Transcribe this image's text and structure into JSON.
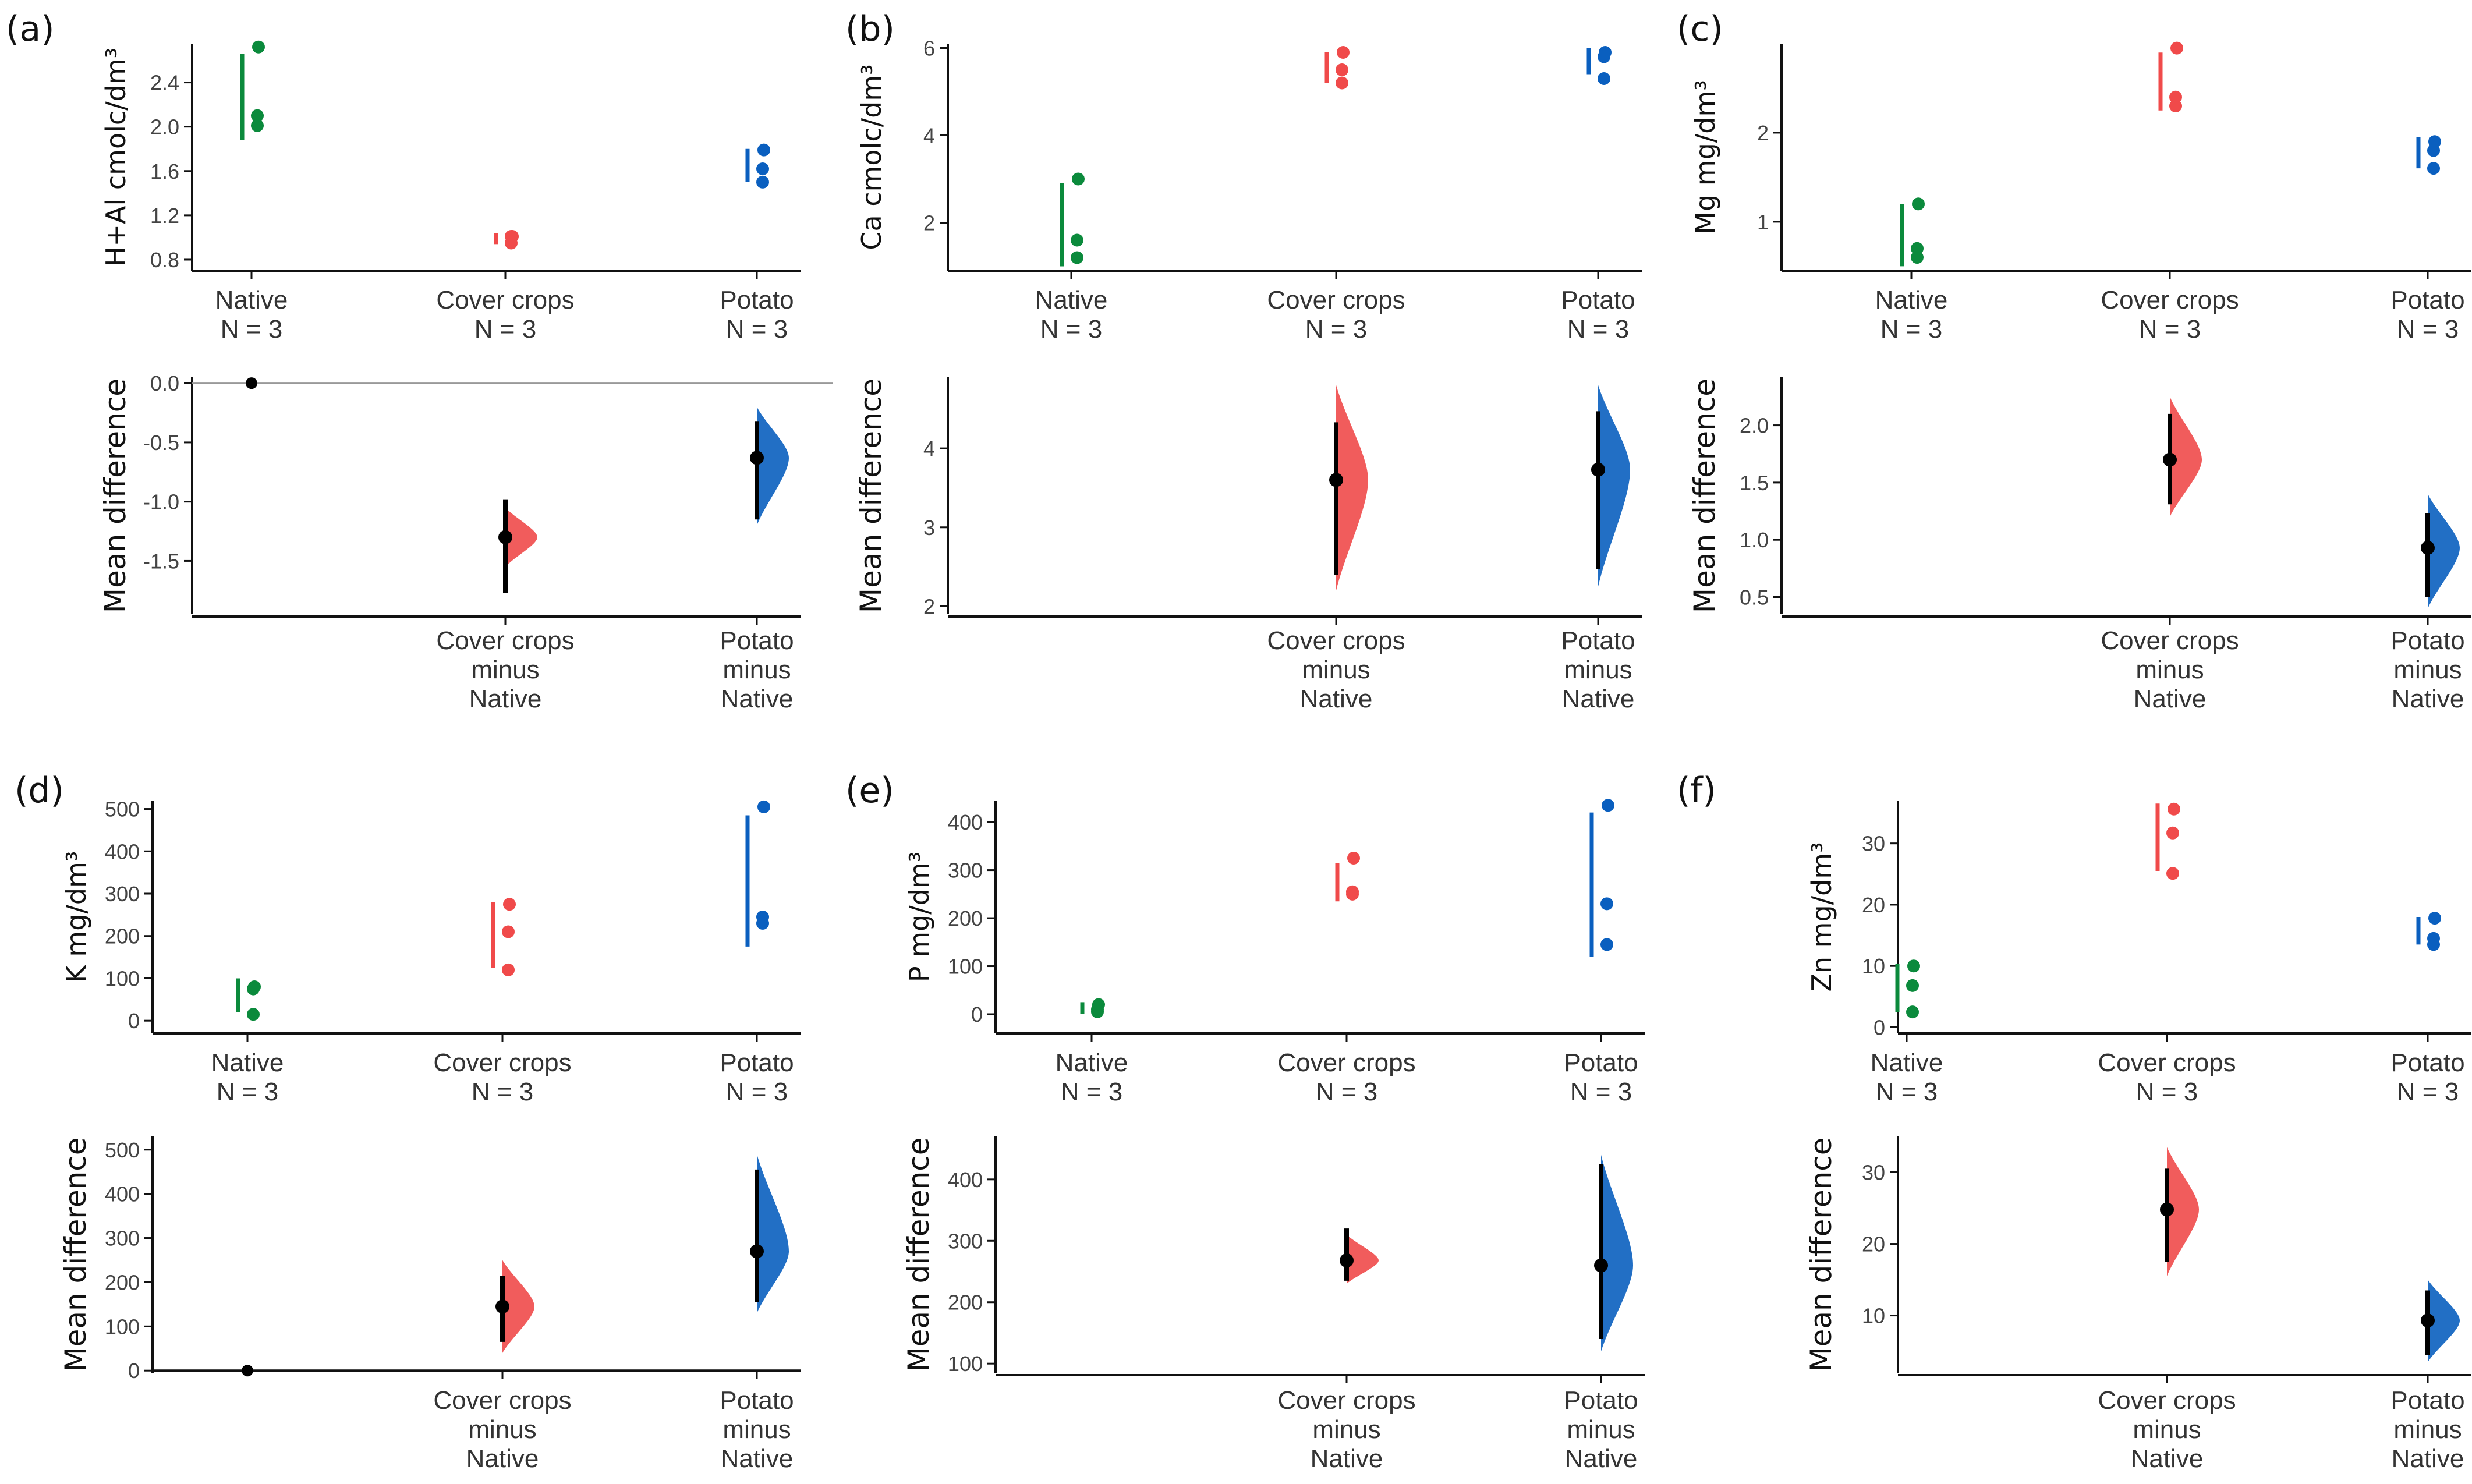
{
  "colors": {
    "native": "#0b8a3c",
    "cover": "#f04a4a",
    "potato": "#0a5fbf",
    "axis": "#111111",
    "mean": "#000000"
  },
  "bottom_ylabel": "Mean difference",
  "chart_data": [
    {
      "panel": "(a)",
      "type": "estimation",
      "top": {
        "ylabel": "H+Al cmolc/dm³",
        "ylim": [
          0.7,
          2.75
        ],
        "ticks": [
          "0.8",
          "1.2",
          "1.6",
          "2.0",
          "2.4"
        ],
        "groups": [
          {
            "name": "Native",
            "n": "N = 3",
            "color": "native",
            "points": [
              2.72,
              2.1,
              2.01
            ],
            "range": [
              1.88,
              2.66
            ]
          },
          {
            "name": "Cover crops",
            "n": "N = 3",
            "color": "cover",
            "points": [
              1.01,
              0.95,
              1.01
            ],
            "range": [
              0.94,
              1.04
            ]
          },
          {
            "name": "Potato",
            "n": "N = 3",
            "color": "potato",
            "points": [
              1.79,
              1.62,
              1.5
            ],
            "range": [
              1.5,
              1.8
            ]
          }
        ]
      },
      "bottom": {
        "ylim": [
          -1.95,
          0.05
        ],
        "ticks": [
          "-1.5",
          "-1.0",
          "-0.5",
          "0.0"
        ],
        "zero_line": true,
        "labels": [
          "Cover crops\nminus\nNative",
          "Potato\nminus\nNative"
        ],
        "diffs": [
          {
            "color": "cover",
            "mean": -1.3,
            "ci": [
              -1.77,
              -0.98
            ],
            "density": [
              -1.55,
              -1.3,
              -1.05
            ]
          },
          {
            "color": "potato",
            "mean": -0.63,
            "ci": [
              -1.15,
              -0.32
            ],
            "density": [
              -1.2,
              -0.63,
              -0.2
            ]
          }
        ]
      }
    },
    {
      "panel": "(b)",
      "type": "estimation",
      "top": {
        "ylabel": "Ca cmolc/dm³",
        "ylim": [
          0.9,
          6.1
        ],
        "ticks": [
          "2",
          "4",
          "6"
        ],
        "groups": [
          {
            "name": "Native",
            "n": "N = 3",
            "color": "native",
            "points": [
              3.0,
              1.6,
              1.2
            ],
            "range": [
              1.0,
              2.9
            ]
          },
          {
            "name": "Cover crops",
            "n": "N = 3",
            "color": "cover",
            "points": [
              5.9,
              5.5,
              5.2
            ],
            "range": [
              5.2,
              5.9
            ]
          },
          {
            "name": "Potato",
            "n": "N = 3",
            "color": "potato",
            "points": [
              5.9,
              5.8,
              5.3
            ],
            "range": [
              5.4,
              6.0
            ]
          }
        ]
      },
      "bottom": {
        "ylim": [
          1.9,
          4.9
        ],
        "ticks": [
          "2",
          "3",
          "4"
        ],
        "zero_line": false,
        "labels": [
          "Cover crops\nminus\nNative",
          "Potato\nminus\nNative"
        ],
        "diffs": [
          {
            "color": "cover",
            "mean": 3.6,
            "ci": [
              2.4,
              4.33
            ],
            "density": [
              2.2,
              3.6,
              4.8
            ]
          },
          {
            "color": "potato",
            "mean": 3.73,
            "ci": [
              2.47,
              4.47
            ],
            "density": [
              2.25,
              3.73,
              4.8
            ]
          }
        ]
      }
    },
    {
      "panel": "(c)",
      "type": "estimation",
      "top": {
        "ylabel": "Mg mg/dm³",
        "ylim": [
          0.45,
          3.0
        ],
        "ticks": [
          "1",
          "2"
        ],
        "groups": [
          {
            "name": "Native",
            "n": "N = 3",
            "color": "native",
            "points": [
              1.2,
              0.7,
              0.6
            ],
            "range": [
              0.5,
              1.2
            ]
          },
          {
            "name": "Cover crops",
            "n": "N = 3",
            "color": "cover",
            "points": [
              2.95,
              2.4,
              2.3
            ],
            "range": [
              2.25,
              2.9
            ]
          },
          {
            "name": "Potato",
            "n": "N = 3",
            "color": "potato",
            "points": [
              1.9,
              1.8,
              1.6
            ],
            "range": [
              1.6,
              1.95
            ]
          }
        ]
      },
      "bottom": {
        "ylim": [
          0.35,
          2.42
        ],
        "ticks": [
          "0.5",
          "1.0",
          "1.5",
          "2.0"
        ],
        "zero_line": false,
        "labels": [
          "Cover crops\nminus\nNative",
          "Potato\nminus\nNative"
        ],
        "diffs": [
          {
            "color": "cover",
            "mean": 1.7,
            "ci": [
              1.31,
              2.1
            ],
            "density": [
              1.2,
              1.7,
              2.25
            ]
          },
          {
            "color": "potato",
            "mean": 0.93,
            "ci": [
              0.5,
              1.23
            ],
            "density": [
              0.4,
              0.93,
              1.4
            ]
          }
        ]
      }
    },
    {
      "panel": "(d)",
      "type": "estimation",
      "top": {
        "ylabel": "K mg/dm³",
        "ylim": [
          -30,
          520
        ],
        "ticks": [
          "0",
          "100",
          "200",
          "300",
          "400",
          "500"
        ],
        "groups": [
          {
            "name": "Native",
            "n": "N = 3",
            "color": "native",
            "points": [
              80,
              75,
              15
            ],
            "range": [
              20,
              100
            ]
          },
          {
            "name": "Cover crops",
            "n": "N = 3",
            "color": "cover",
            "points": [
              275,
              210,
              120
            ],
            "range": [
              125,
              280
            ]
          },
          {
            "name": "Potato",
            "n": "N = 3",
            "color": "potato",
            "points": [
              505,
              245,
              230
            ],
            "range": [
              175,
              485
            ]
          }
        ]
      },
      "bottom": {
        "ylim": [
          -5,
          530
        ],
        "ticks": [
          "0",
          "100",
          "200",
          "300",
          "400",
          "500"
        ],
        "zero_line": true,
        "labels": [
          "Cover crops\nminus\nNative",
          "Potato\nminus\nNative"
        ],
        "diffs": [
          {
            "color": "cover",
            "mean": 145,
            "ci": [
              65,
              215
            ],
            "density": [
              40,
              145,
              250
            ]
          },
          {
            "color": "potato",
            "mean": 270,
            "ci": [
              155,
              455
            ],
            "density": [
              130,
              270,
              490
            ]
          }
        ]
      }
    },
    {
      "panel": "(e)",
      "type": "estimation",
      "top": {
        "ylabel": "P mg/dm³",
        "ylim": [
          -40,
          445
        ],
        "ticks": [
          "0",
          "100",
          "200",
          "300",
          "400"
        ],
        "groups": [
          {
            "name": "Native",
            "n": "N = 3",
            "color": "native",
            "points": [
              20,
              10,
              5
            ],
            "range": [
              0,
              25
            ]
          },
          {
            "name": "Cover crops",
            "n": "N = 3",
            "color": "cover",
            "points": [
              325,
              255,
              250
            ],
            "range": [
              235,
              315
            ]
          },
          {
            "name": "Potato",
            "n": "N = 3",
            "color": "potato",
            "points": [
              435,
              230,
              145
            ],
            "range": [
              120,
              420
            ]
          }
        ]
      },
      "bottom": {
        "ylim": [
          85,
          470
        ],
        "ticks": [
          "100",
          "200",
          "300",
          "400"
        ],
        "zero_line": false,
        "labels": [
          "Cover crops\nminus\nNative",
          "Potato\nminus\nNative"
        ],
        "diffs": [
          {
            "color": "cover",
            "mean": 268,
            "ci": [
              235,
              320
            ],
            "density": [
              230,
              268,
              310
            ]
          },
          {
            "color": "potato",
            "mean": 260,
            "ci": [
              140,
              425
            ],
            "density": [
              120,
              260,
              440
            ]
          }
        ]
      }
    },
    {
      "panel": "(f)",
      "type": "estimation",
      "top": {
        "ylabel": "Zn mg/dm³",
        "ylim": [
          -1,
          37
        ],
        "ticks": [
          "0",
          "10",
          "20",
          "30"
        ],
        "groups": [
          {
            "name": "Native",
            "n": "N = 3",
            "color": "native",
            "points": [
              10,
              6.8,
              2.5
            ],
            "range": [
              2.5,
              10.3
            ]
          },
          {
            "name": "Cover crops",
            "n": "N = 3",
            "color": "cover",
            "points": [
              35.6,
              31.7,
              25.1
            ],
            "range": [
              25.5,
              36.5
            ]
          },
          {
            "name": "Potato",
            "n": "N = 3",
            "color": "potato",
            "points": [
              17.8,
              14.5,
              13.5
            ],
            "range": [
              13.5,
              18
            ]
          }
        ]
      },
      "bottom": {
        "ylim": [
          2,
          35
        ],
        "ticks": [
          "10",
          "20",
          "30"
        ],
        "zero_line": false,
        "labels": [
          "Cover crops\nminus\nNative",
          "Potato\nminus\nNative"
        ],
        "diffs": [
          {
            "color": "cover",
            "mean": 24.8,
            "ci": [
              17.5,
              30.5
            ],
            "density": [
              15.5,
              24.8,
              33.5
            ]
          },
          {
            "color": "potato",
            "mean": 9.3,
            "ci": [
              4.5,
              13.5
            ],
            "density": [
              3.5,
              9.3,
              15
            ]
          }
        ]
      }
    }
  ]
}
